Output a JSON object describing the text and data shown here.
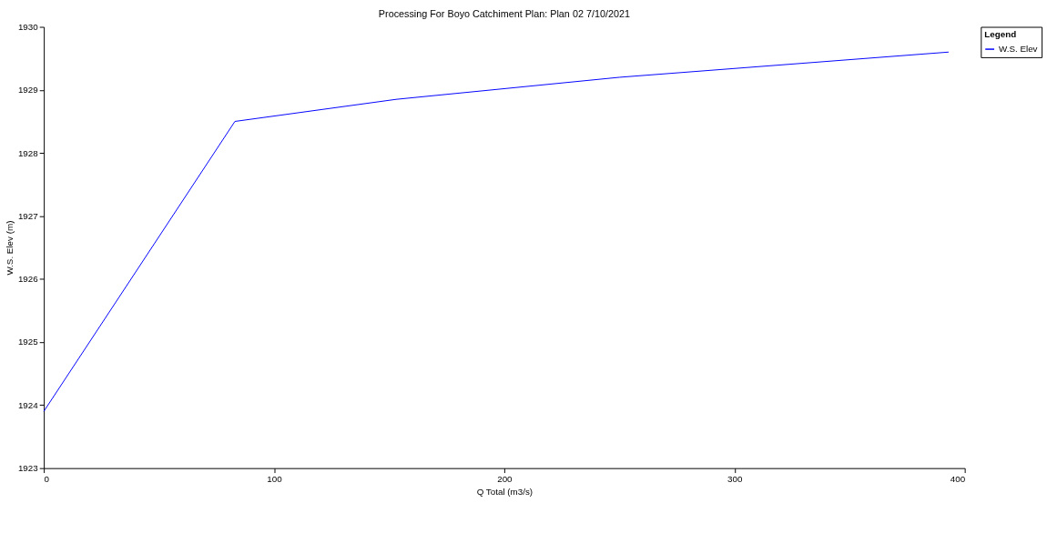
{
  "chart_data": {
    "type": "line",
    "title": "Processing For Boyo Catchiment     Plan: Plan 02    7/10/2021",
    "xlabel": "Q Total  (m3/s)",
    "ylabel": "W.S. Elev  (m)",
    "legend_title": "Legend",
    "x": [
      0,
      83,
      153,
      250,
      393
    ],
    "series": [
      {
        "name": "W.S. Elev",
        "color": "#0000ff",
        "values": [
          1923.9,
          1928.5,
          1928.85,
          1929.2,
          1929.6
        ]
      }
    ],
    "xlim": [
      0,
      400
    ],
    "xticks": [
      0,
      100,
      200,
      300,
      400
    ],
    "ylim": [
      1923,
      1930
    ],
    "yticks": [
      1923,
      1924,
      1925,
      1926,
      1927,
      1928,
      1929,
      1930
    ],
    "grid": false,
    "legend": "top right",
    "marker": "none",
    "line_style": "solid"
  }
}
